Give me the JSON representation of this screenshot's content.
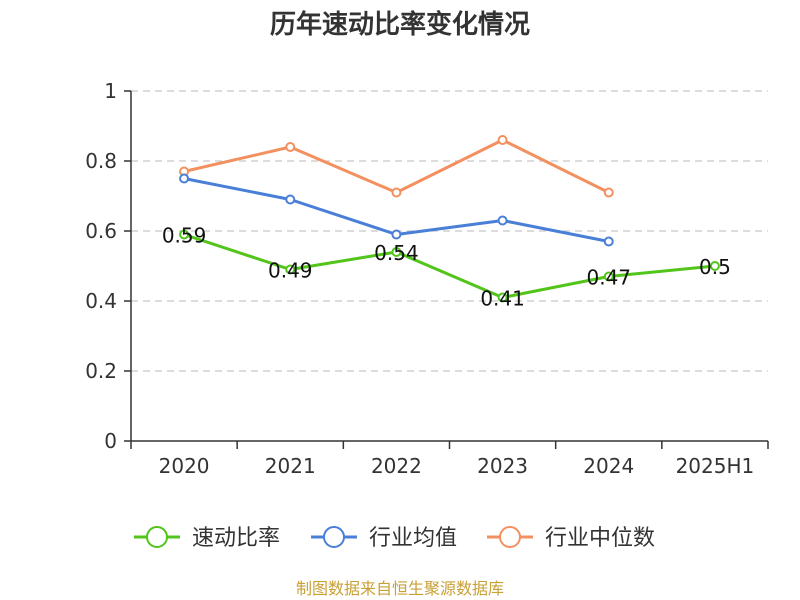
{
  "title": "历年速动比率变化情况",
  "source": "制图数据来自恒生聚源数据库",
  "chart_data": {
    "type": "line",
    "title": "历年速动比率变化情况",
    "categories": [
      "2020",
      "2021",
      "2022",
      "2023",
      "2024",
      "2025H1"
    ],
    "ylim": [
      0,
      1
    ],
    "yticks": [
      "0",
      "0.2",
      "0.4",
      "0.6",
      "0.8",
      "1"
    ],
    "grid": true,
    "legend_position": "bottom",
    "series": [
      {
        "name": "速动比率",
        "color": "#52c41a",
        "values": [
          0.59,
          0.49,
          0.54,
          0.41,
          0.47,
          0.5
        ],
        "labels": [
          "0.59",
          "0.49",
          "0.54",
          "0.41",
          "0.47",
          "0.5"
        ]
      },
      {
        "name": "行业均值",
        "color": "#4a7fd8",
        "values": [
          0.75,
          0.69,
          0.59,
          0.63,
          0.57,
          null
        ]
      },
      {
        "name": "行业中位数",
        "color": "#f39060",
        "values": [
          0.77,
          0.84,
          0.71,
          0.86,
          0.71,
          null
        ]
      }
    ]
  }
}
